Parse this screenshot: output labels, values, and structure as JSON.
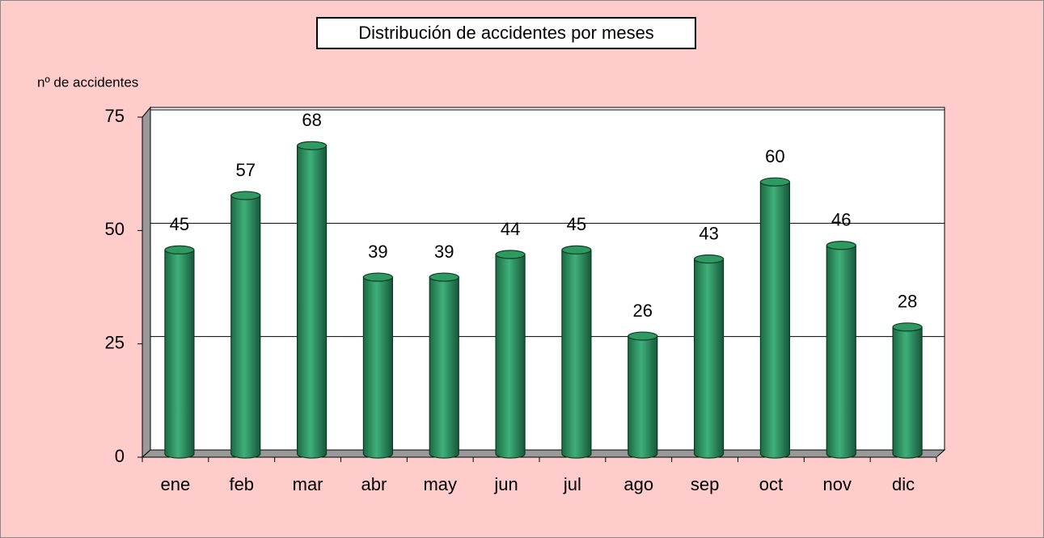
{
  "chart_data": {
    "type": "bar",
    "title": "Distribución de accidentes por meses",
    "y_label": "nº de accidentes",
    "categories": [
      "ene",
      "feb",
      "mar",
      "abr",
      "may",
      "jun",
      "jul",
      "ago",
      "sep",
      "oct",
      "nov",
      "dic"
    ],
    "values": [
      45,
      57,
      68,
      39,
      39,
      44,
      45,
      26,
      43,
      60,
      46,
      28
    ],
    "color": "#2e9a62",
    "ylim": [
      0,
      75
    ],
    "yticks": [
      0,
      25,
      50,
      75
    ],
    "grid": true
  }
}
